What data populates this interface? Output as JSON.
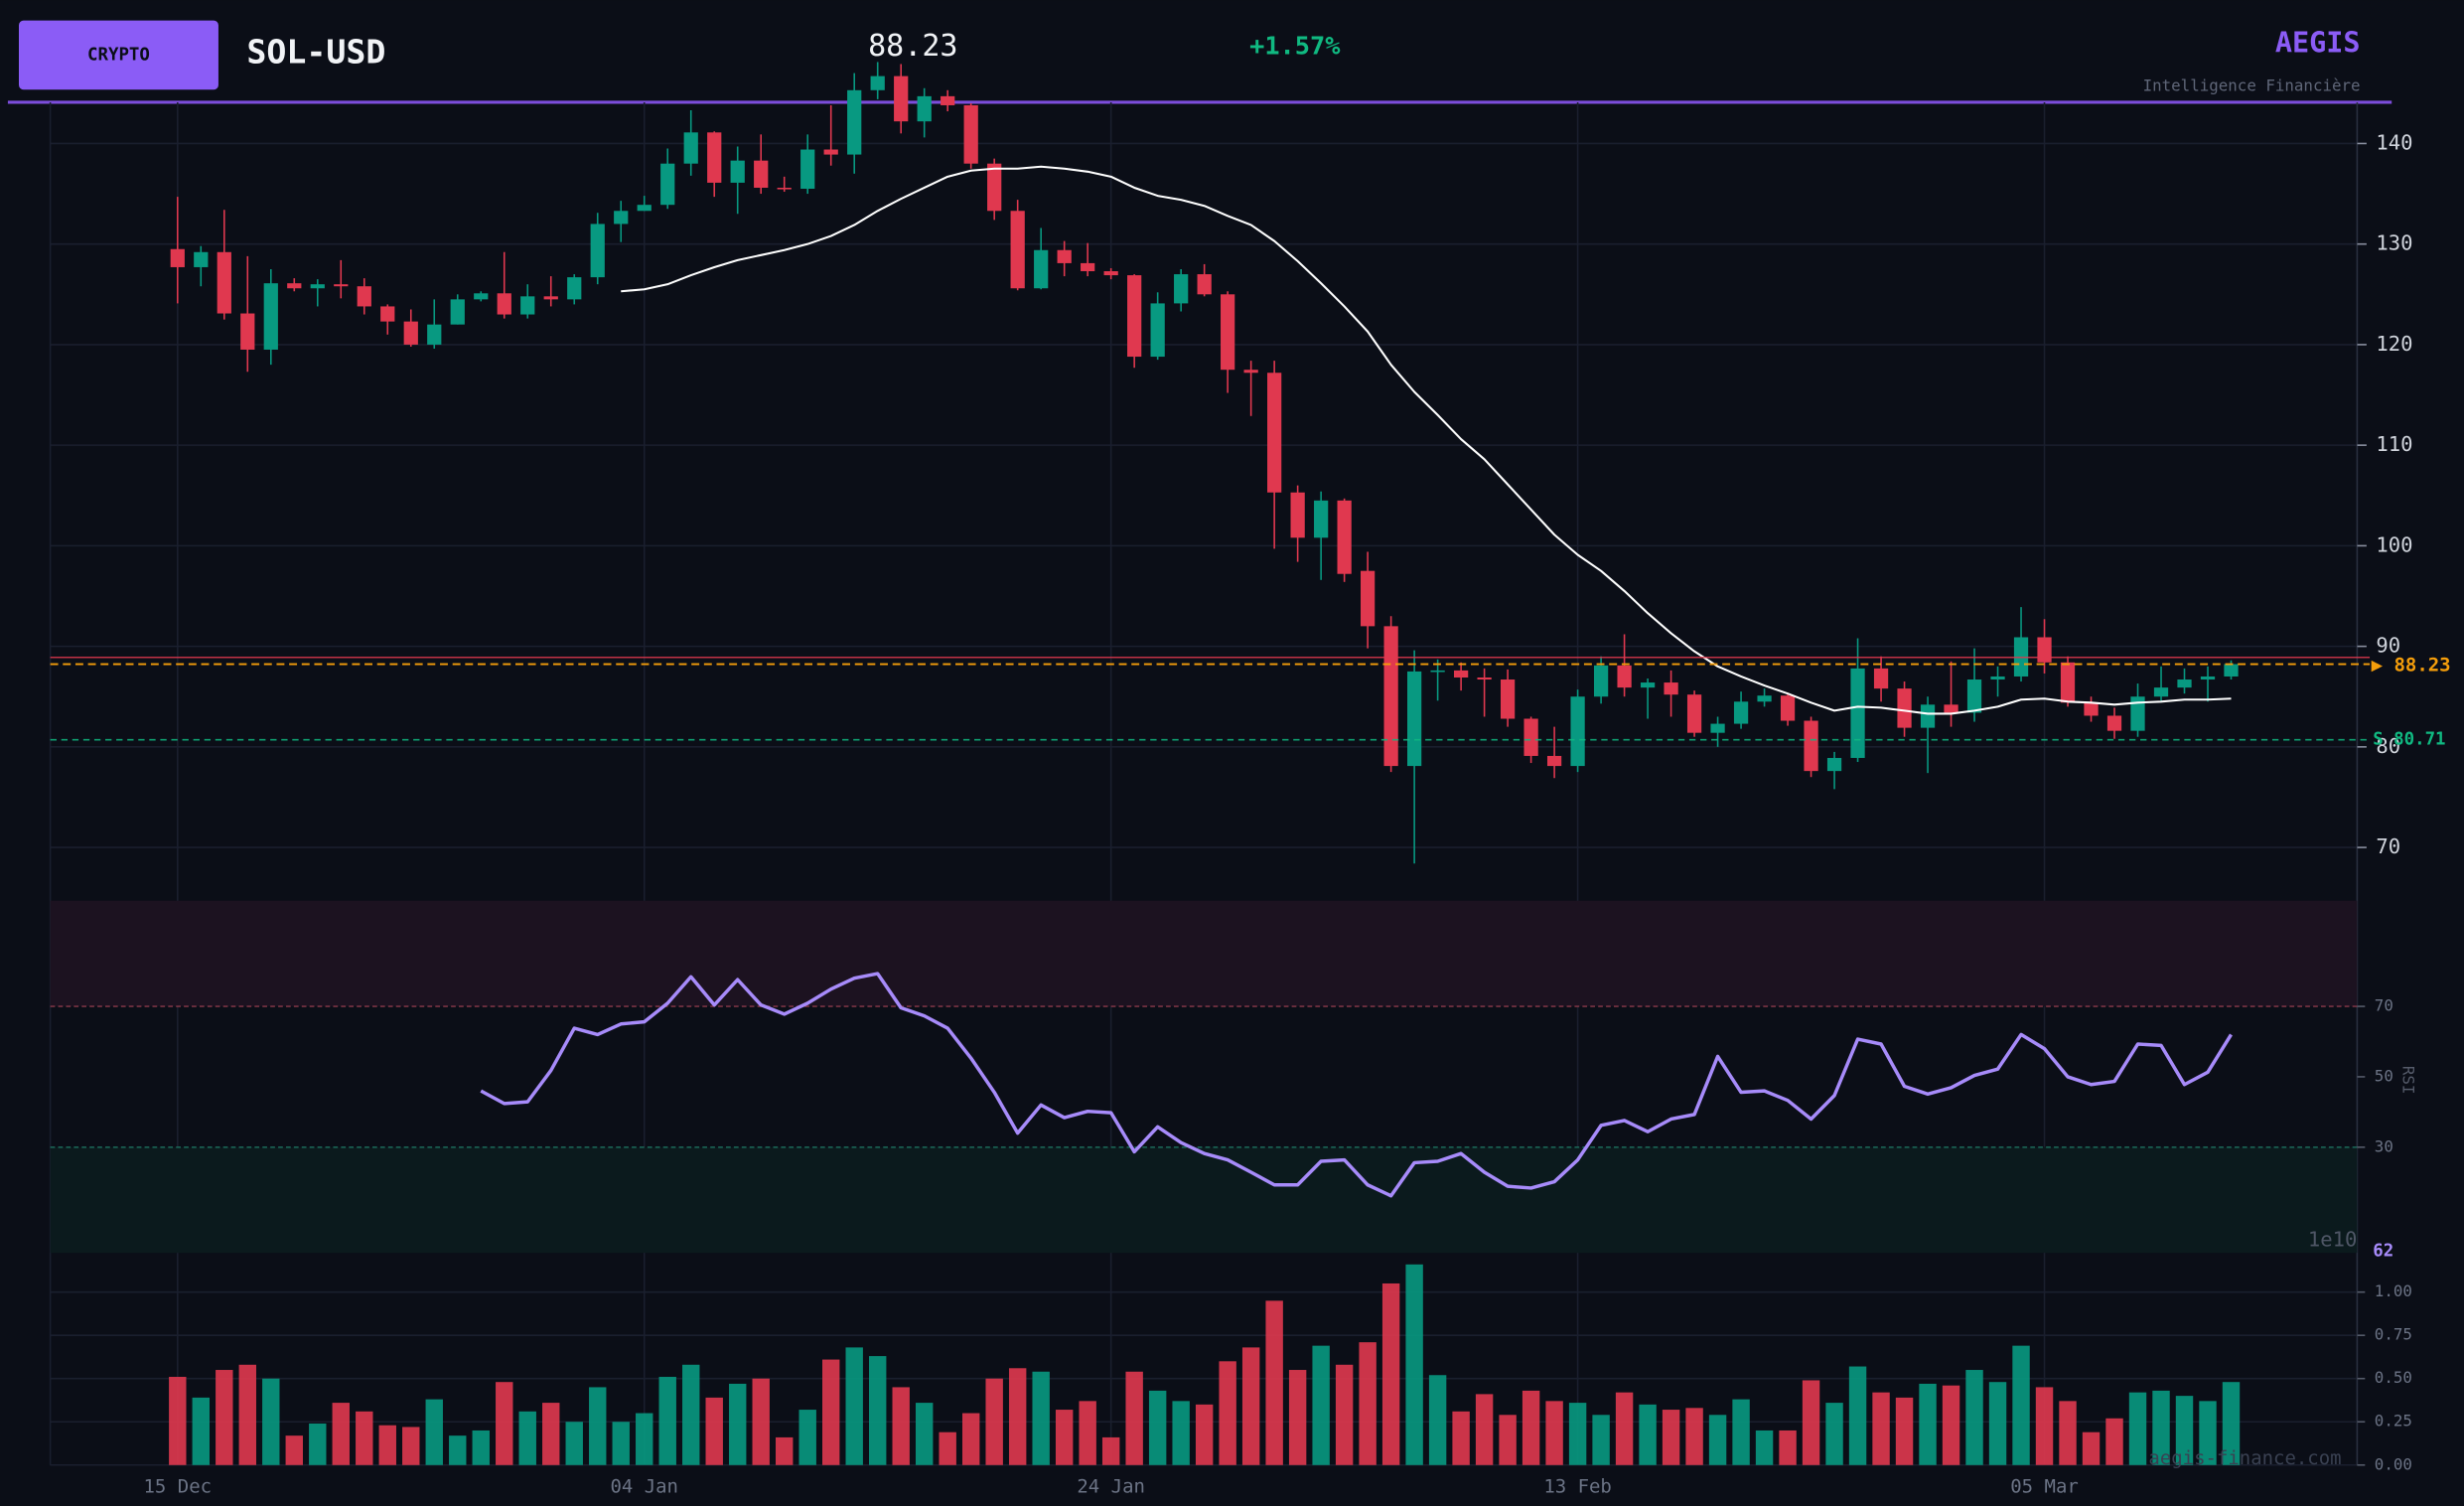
{
  "header": {
    "badge": "CRYPTO",
    "ticker": "SOL-USD",
    "price": "88.23",
    "change": "+1.57%",
    "brand": "AEGIS",
    "tagline": "Intelligence Financière",
    "watermark": "aegis-finance.com"
  },
  "chart_data": [
    {
      "type": "candlestick",
      "up_color": "#089981",
      "down_color": "#e0384f",
      "grid": true,
      "ylim": [
        64.7,
        144.1
      ],
      "yticks": [
        70,
        80,
        90,
        100,
        110,
        120,
        130,
        140
      ],
      "open": [
        129.5,
        127.7,
        129.2,
        123.1,
        119.5,
        126.1,
        125.6,
        126,
        125.8,
        123.8,
        122.3,
        120,
        122,
        124.5,
        125.1,
        123,
        124.8,
        124.5,
        126.7,
        132,
        133.3,
        133.9,
        138,
        141.1,
        136.1,
        138.3,
        135.6,
        135.5,
        139.4,
        138.9,
        145.3,
        146.7,
        142.2,
        144.7,
        143.8,
        138,
        133.3,
        125.6,
        129.4,
        128.1,
        127.3,
        126.9,
        118.8,
        124.1,
        127,
        125,
        117.5,
        117.2,
        105.3,
        100.8,
        104.5,
        97.5,
        92,
        78.1,
        87.5,
        87.6,
        86.9,
        86.7,
        82.8,
        79.1,
        78.1,
        85,
        88.1,
        85.9,
        86.4,
        85.2,
        81.4,
        82.3,
        84.5,
        85.1,
        82.6,
        77.6,
        78.9,
        87.8,
        85.8,
        81.9,
        84.2,
        83.4,
        86.7,
        87,
        90.9,
        88.4,
        84.4,
        83.1,
        81.6,
        85,
        85.9,
        86.7,
        87
      ],
      "high": [
        134.7,
        129.8,
        133.4,
        128.8,
        127.5,
        126.6,
        126.5,
        128.4,
        126.6,
        124,
        123.5,
        124.5,
        125,
        125.3,
        129.2,
        126,
        126.8,
        127,
        133.1,
        134.3,
        134.8,
        139.5,
        143.3,
        141.2,
        139.7,
        140.9,
        136.7,
        140.9,
        143.8,
        147,
        148.1,
        147.9,
        145.5,
        145.3,
        144,
        138.5,
        134.4,
        131.6,
        130.3,
        130.1,
        127.6,
        127,
        125.2,
        127.5,
        128,
        125.3,
        118.4,
        118.4,
        106,
        105.4,
        104.7,
        99.4,
        93,
        89.6,
        88.7,
        88.4,
        87.8,
        87.7,
        83,
        82,
        85.7,
        89,
        91.2,
        86.8,
        87.6,
        85.6,
        83,
        85.5,
        85.8,
        85.3,
        83,
        79.5,
        90.8,
        89,
        86.5,
        85,
        88.5,
        89.8,
        88,
        93.9,
        92.7,
        89,
        85,
        83.9,
        86.3,
        88,
        87.8,
        88,
        88.6
      ],
      "low": [
        124.1,
        125.8,
        122.5,
        117.3,
        118,
        125.3,
        123.8,
        124.6,
        123,
        121,
        119.8,
        119.6,
        122,
        124.3,
        122.6,
        122.6,
        123.8,
        124,
        126,
        130.2,
        133.3,
        133.5,
        136.8,
        134.7,
        133,
        135,
        135.2,
        135,
        137.8,
        137,
        144.4,
        141,
        140.6,
        143.2,
        137.5,
        132.4,
        125.4,
        125.5,
        126.8,
        126.8,
        126.5,
        117.7,
        118.5,
        123.3,
        124.8,
        115.2,
        112.9,
        99.7,
        98.4,
        96.6,
        96.4,
        89.8,
        77.5,
        68.4,
        84.6,
        85.6,
        83,
        82,
        78.4,
        76.9,
        77.5,
        84.3,
        85,
        82.8,
        83,
        81,
        80,
        81.8,
        84,
        82.1,
        77,
        75.8,
        78.5,
        84.5,
        81,
        77.4,
        82,
        82.5,
        85,
        86.5,
        87.3,
        84,
        82.5,
        80.8,
        81,
        84.6,
        85.3,
        84.5,
        86.7
      ],
      "close": [
        127.7,
        129.2,
        123.1,
        119.5,
        126.1,
        125.6,
        126,
        125.8,
        123.8,
        122.3,
        120,
        122,
        124.5,
        125.1,
        123,
        124.8,
        124.5,
        126.7,
        132,
        133.3,
        133.9,
        138,
        141.1,
        136.1,
        138.3,
        135.6,
        135.5,
        139.4,
        138.9,
        145.3,
        146.7,
        142.2,
        144.7,
        143.8,
        138,
        133.3,
        125.6,
        129.4,
        128.1,
        127.3,
        126.9,
        118.8,
        124.1,
        127,
        125,
        117.5,
        117.2,
        105.3,
        100.8,
        104.5,
        97.2,
        92,
        78.1,
        87.5,
        87.6,
        86.9,
        86.7,
        82.8,
        79.1,
        78.1,
        85,
        88.1,
        85.9,
        86.4,
        85.2,
        81.4,
        82.3,
        84.5,
        85.1,
        82.6,
        77.6,
        78.9,
        87.8,
        85.8,
        81.9,
        84.2,
        83.4,
        86.7,
        87,
        90.9,
        88.4,
        84.4,
        83.1,
        81.6,
        85,
        85.9,
        86.7,
        87,
        88.23
      ],
      "overlays": [
        {
          "color": "#ffffff",
          "values": [
            null,
            null,
            null,
            null,
            null,
            null,
            null,
            null,
            null,
            null,
            null,
            null,
            null,
            null,
            null,
            null,
            null,
            null,
            null,
            125.3,
            125.5,
            126,
            126.9,
            127.7,
            128.4,
            128.9,
            129.4,
            130,
            130.8,
            131.9,
            133.3,
            134.5,
            135.6,
            136.7,
            137.3,
            137.5,
            137.5,
            137.7,
            137.5,
            137.2,
            136.7,
            135.6,
            134.8,
            134.4,
            133.8,
            132.8,
            131.9,
            130.3,
            128.3,
            126.1,
            123.8,
            121.3,
            118,
            115.3,
            113,
            110.6,
            108.6,
            106.1,
            103.6,
            101.1,
            99.1,
            97.5,
            95.5,
            93.3,
            91.3,
            89.5,
            88,
            87,
            86.1,
            85.3,
            84.4,
            83.6,
            84,
            83.9,
            83.6,
            83.3,
            83.3,
            83.6,
            84,
            84.7,
            84.8,
            84.5,
            84.4,
            84.2,
            84.4,
            84.5,
            84.7,
            84.7,
            84.8
          ]
        }
      ],
      "levels": [
        {
          "value": 88.9,
          "color": "#e0384f"
        },
        {
          "value": 80.71,
          "label": "S 80.71",
          "color": "#10b981"
        }
      ],
      "last_price": {
        "value": 88.23,
        "label": "▶ 88.23",
        "color": "#f59e0b"
      }
    },
    {
      "type": "line",
      "y_label": "RSI",
      "color": "#a78bfa",
      "ylim": [
        0,
        100
      ],
      "yticks": [
        30,
        50,
        70
      ],
      "overbought": 70,
      "oversold": 30,
      "values": [
        null,
        null,
        null,
        null,
        null,
        null,
        null,
        null,
        null,
        null,
        null,
        null,
        null,
        46,
        42.4,
        42.9,
        51.8,
        63.8,
        62,
        65,
        65.6,
        70.9,
        78.4,
        70.4,
        77.6,
        70.4,
        67.8,
        70.9,
        74.9,
        78,
        79.3,
        69.6,
        67.3,
        63.8,
        55.3,
        45.6,
        34,
        42,
        38.4,
        40.2,
        39.8,
        28.7,
        35.8,
        31.3,
        28.2,
        26.4,
        22.9,
        19.3,
        19.3,
        26,
        26.4,
        19.3,
        16.2,
        25.6,
        26,
        28.2,
        22.9,
        18.9,
        18.4,
        20.2,
        26.4,
        36.2,
        37.6,
        34.4,
        38,
        39.3,
        55.8,
        45.6,
        46,
        43.3,
        38,
        44.7,
        60.7,
        59.3,
        47.3,
        45.1,
        46.9,
        50.4,
        52.2,
        62,
        58,
        50,
        47.8,
        48.7,
        59.3,
        58.9,
        47.8,
        51.3,
        62
      ]
    },
    {
      "type": "bar",
      "offset_label": "1e10",
      "ylim": [
        0,
        1.227
      ],
      "yticks": [
        {
          "value": 0,
          "label": "0.00"
        },
        {
          "value": 0.25,
          "label": "0.25"
        },
        {
          "value": 0.5,
          "label": "0.50"
        },
        {
          "value": 0.75,
          "label": "0.75"
        },
        {
          "value": 1,
          "label": "1.00"
        }
      ],
      "categories": [
        "15 Dec",
        null,
        null,
        null,
        null,
        null,
        null,
        null,
        null,
        null,
        null,
        null,
        null,
        null,
        null,
        null,
        null,
        null,
        null,
        null,
        "04 Jan",
        null,
        null,
        null,
        null,
        null,
        null,
        null,
        null,
        null,
        null,
        null,
        null,
        null,
        null,
        null,
        null,
        null,
        null,
        null,
        "24 Jan",
        null,
        null,
        null,
        null,
        null,
        null,
        null,
        null,
        null,
        null,
        null,
        null,
        null,
        null,
        null,
        null,
        null,
        null,
        null,
        "13 Feb",
        null,
        null,
        null,
        null,
        null,
        null,
        null,
        null,
        null,
        null,
        null,
        null,
        null,
        null,
        null,
        null,
        null,
        null,
        null,
        "05 Mar",
        null,
        null,
        null,
        null,
        null,
        null,
        null,
        null
      ],
      "values": [
        0.51,
        0.39,
        0.55,
        0.58,
        0.5,
        0.17,
        0.24,
        0.36,
        0.31,
        0.23,
        0.22,
        0.38,
        0.17,
        0.2,
        0.48,
        0.31,
        0.36,
        0.25,
        0.45,
        0.25,
        0.3,
        0.51,
        0.58,
        0.39,
        0.47,
        0.5,
        0.16,
        0.32,
        0.61,
        0.68,
        0.63,
        0.45,
        0.36,
        0.19,
        0.3,
        0.5,
        0.56,
        0.54,
        0.32,
        0.37,
        0.16,
        0.54,
        0.43,
        0.37,
        0.35,
        0.6,
        0.68,
        0.95,
        0.55,
        0.69,
        0.58,
        0.71,
        1.05,
        1.16,
        0.52,
        0.31,
        0.41,
        0.29,
        0.43,
        0.37,
        0.36,
        0.29,
        0.42,
        0.35,
        0.32,
        0.33,
        0.29,
        0.38,
        0.2,
        0.2,
        0.49,
        0.36,
        0.57,
        0.42,
        0.39,
        0.47,
        0.46,
        0.55,
        0.48,
        0.69,
        0.45,
        0.37,
        0.19,
        0.27,
        0.42,
        0.43,
        0.4,
        0.37,
        0.48
      ]
    }
  ]
}
